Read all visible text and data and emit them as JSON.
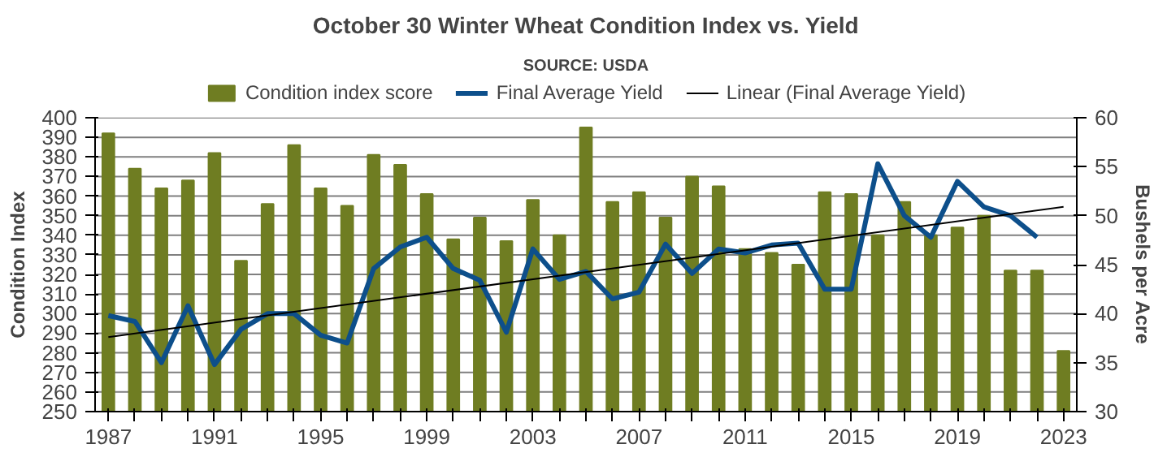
{
  "chart_data": {
    "type": "bar",
    "title": "October 30 Winter Wheat Condition Index vs. Yield",
    "annotations": [
      "SOURCE: USDA"
    ],
    "ylabel": "Condition Index",
    "y2label": "Bushels per Acre",
    "x": [
      1987,
      1988,
      1989,
      1990,
      1991,
      1992,
      1993,
      1994,
      1995,
      1996,
      1997,
      1998,
      1999,
      2000,
      2001,
      2002,
      2003,
      2004,
      2005,
      2006,
      2007,
      2008,
      2009,
      2010,
      2011,
      2012,
      2013,
      2014,
      2015,
      2016,
      2017,
      2018,
      2019,
      2020,
      2021,
      2022,
      2023
    ],
    "xlim": [
      1986.5,
      2023.5
    ],
    "xticks": [
      1987,
      {
        "value": 1988,
        "label": null
      },
      {
        "value": 1989,
        "label": null
      },
      {
        "value": 1990,
        "label": null
      },
      1991,
      {
        "value": 1992,
        "label": null
      },
      {
        "value": 1993,
        "label": null
      },
      {
        "value": 1994,
        "label": null
      },
      1995,
      {
        "value": 1996,
        "label": null
      },
      {
        "value": 1997,
        "label": null
      },
      {
        "value": 1998,
        "label": null
      },
      1999,
      {
        "value": 2000,
        "label": null
      },
      {
        "value": 2001,
        "label": null
      },
      {
        "value": 2002,
        "label": null
      },
      2003,
      {
        "value": 2004,
        "label": null
      },
      {
        "value": 2005,
        "label": null
      },
      {
        "value": 2006,
        "label": null
      },
      2007,
      {
        "value": 2008,
        "label": null
      },
      {
        "value": 2009,
        "label": null
      },
      {
        "value": 2010,
        "label": null
      },
      2011,
      {
        "value": 2012,
        "label": null
      },
      {
        "value": 2013,
        "label": null
      },
      {
        "value": 2014,
        "label": null
      },
      2015,
      {
        "value": 2016,
        "label": null
      },
      {
        "value": 2017,
        "label": null
      },
      {
        "value": 2018,
        "label": null
      },
      2019,
      {
        "value": 2020,
        "label": null
      },
      {
        "value": 2021,
        "label": null
      },
      {
        "value": 2022,
        "label": null
      },
      2023
    ],
    "ylim": [
      250,
      400
    ],
    "yticks": [
      250,
      260,
      270,
      280,
      290,
      300,
      310,
      320,
      330,
      340,
      350,
      360,
      370,
      380,
      390,
      400
    ],
    "y2lim": [
      30,
      60
    ],
    "y2ticks": [
      30,
      35,
      40,
      45,
      50,
      55,
      60
    ],
    "grid": "y",
    "legend": "top",
    "series": [
      {
        "name": "Condition index score",
        "color": "#6f7d22",
        "values": [
          392,
          374,
          364,
          368,
          382,
          327,
          356,
          386,
          364,
          355,
          381,
          376,
          361,
          338,
          349,
          337,
          358,
          340,
          395,
          357,
          362,
          349,
          370,
          365,
          333,
          331,
          325,
          362,
          361,
          340,
          357,
          340,
          344,
          350,
          322,
          322,
          281
        ]
      },
      {
        "name": "Final Average Yield",
        "type": "line",
        "axis": "y2",
        "color": "#0d4f8b",
        "values": [
          39.8,
          39.2,
          35.0,
          40.8,
          34.8,
          38.4,
          40.0,
          40.0,
          37.8,
          37.0,
          44.6,
          46.8,
          47.8,
          44.6,
          43.4,
          38.1,
          46.6,
          43.5,
          44.3,
          41.5,
          42.2,
          47.1,
          44.1,
          46.6,
          46.2,
          47.0,
          47.2,
          42.5,
          42.5,
          55.3,
          50.0,
          47.8,
          53.5,
          50.9,
          50.0,
          47.8,
          null
        ]
      },
      {
        "name": "Linear (Final Average Yield)",
        "type": "line",
        "axis": "y2",
        "color": "#000000",
        "x": [
          1987,
          2023
        ],
        "values": [
          37.6,
          50.9
        ]
      }
    ]
  }
}
